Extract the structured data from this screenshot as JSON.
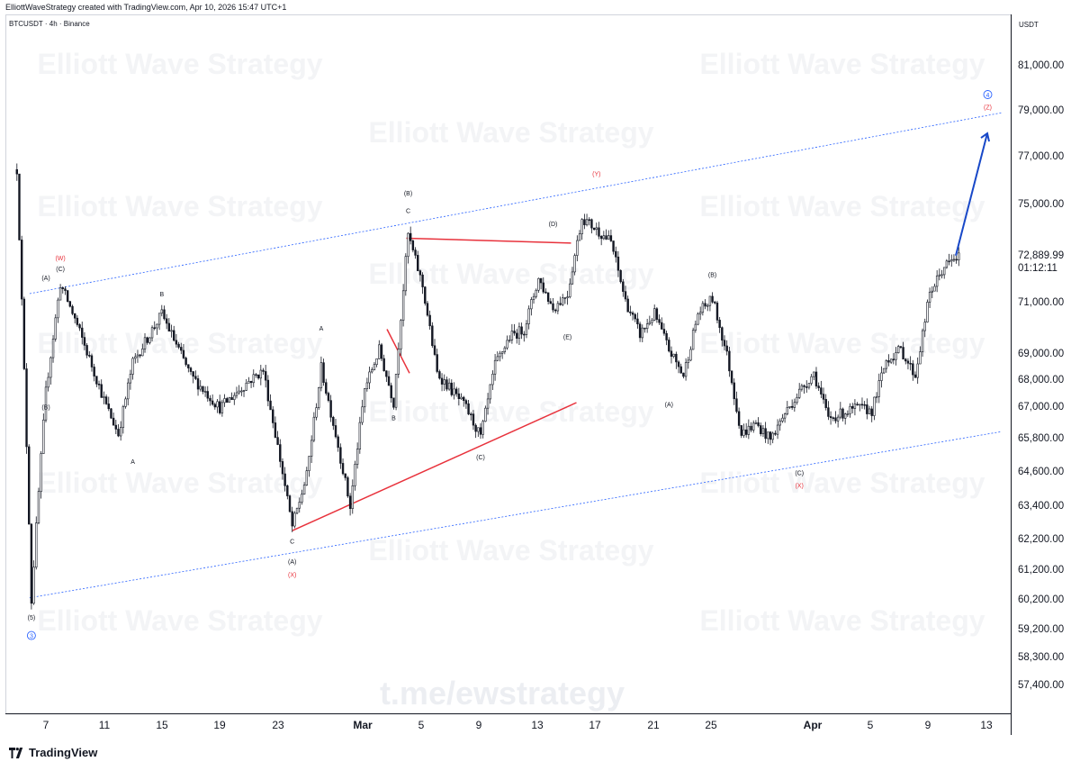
{
  "header": {
    "credit": "ElliottWaveStrategy created with TradingView.com, Apr 10, 2026 15:47 UTC+1",
    "symbol": "BTCUSDT · 4h · Binance"
  },
  "watermarks": {
    "brand": "Elliott Wave Strategy",
    "telegram": "t.me/ewstrategy"
  },
  "footer": {
    "logo_text": "TradingView"
  },
  "colors": {
    "candle": "#131722",
    "channel": "#2962ff",
    "triangle": "#e8323c",
    "arrow": "#1848c8",
    "wave_label_red": "#e8323c",
    "wave_label_blue": "#2962ff"
  },
  "chart_data": {
    "type": "candlestick",
    "symbol": "BTCUSDT",
    "interval": "4h",
    "exchange": "Binance",
    "y_unit": "USDT",
    "y_scale": "log",
    "y_ticks": [
      "81,000.00",
      "79,000.00",
      "77,000.00",
      "75,000.00",
      "72,889.99",
      "71,000.00",
      "69,000.00",
      "68,000.00",
      "67,000.00",
      "65,800.00",
      "64,600.00",
      "63,400.00",
      "62,200.00",
      "61,200.00",
      "60,200.00",
      "59,200.00",
      "58,300.00",
      "57,400.00"
    ],
    "current_price": "72,889.99",
    "countdown": "01:12:11",
    "x_ticks": [
      {
        "label": "7",
        "bold": false
      },
      {
        "label": "11",
        "bold": false
      },
      {
        "label": "15",
        "bold": false
      },
      {
        "label": "19",
        "bold": false
      },
      {
        "label": "23",
        "bold": false
      },
      {
        "label": "Mar",
        "bold": true
      },
      {
        "label": "5",
        "bold": false
      },
      {
        "label": "9",
        "bold": false
      },
      {
        "label": "13",
        "bold": false
      },
      {
        "label": "17",
        "bold": false
      },
      {
        "label": "21",
        "bold": false
      },
      {
        "label": "25",
        "bold": false
      },
      {
        "label": "Apr",
        "bold": true
      },
      {
        "label": "5",
        "bold": false
      },
      {
        "label": "9",
        "bold": false
      },
      {
        "label": "13",
        "bold": false
      }
    ],
    "price_path": [
      {
        "date": "Feb 5",
        "price": 76500
      },
      {
        "date": "Feb 6",
        "price": 60200
      },
      {
        "date": "Feb 7",
        "price": 67600
      },
      {
        "date": "Feb 8",
        "price": 71800
      },
      {
        "date": "Feb 9",
        "price": 70400
      },
      {
        "date": "Feb 11",
        "price": 67300
      },
      {
        "date": "Feb 12",
        "price": 66000
      },
      {
        "date": "Feb 13",
        "price": 68700
      },
      {
        "date": "Feb 15",
        "price": 70600
      },
      {
        "date": "Feb 17",
        "price": 68200
      },
      {
        "date": "Feb 19",
        "price": 67000
      },
      {
        "date": "Feb 21",
        "price": 68000
      },
      {
        "date": "Feb 22",
        "price": 68400
      },
      {
        "date": "Feb 24",
        "price": 62700
      },
      {
        "date": "Feb 25",
        "price": 64500
      },
      {
        "date": "Feb 26",
        "price": 68500
      },
      {
        "date": "Feb 27",
        "price": 66000
      },
      {
        "date": "Feb 28",
        "price": 63400
      },
      {
        "date": "Mar 1",
        "price": 67700
      },
      {
        "date": "Mar 2",
        "price": 69200
      },
      {
        "date": "Mar 3",
        "price": 67200
      },
      {
        "date": "Mar 4",
        "price": 73800
      },
      {
        "date": "Mar 5",
        "price": 71700
      },
      {
        "date": "Mar 6",
        "price": 68300
      },
      {
        "date": "Mar 8",
        "price": 67000
      },
      {
        "date": "Mar 9",
        "price": 65900
      },
      {
        "date": "Mar 10",
        "price": 68600
      },
      {
        "date": "Mar 11",
        "price": 69700
      },
      {
        "date": "Mar 12",
        "price": 70000
      },
      {
        "date": "Mar 13",
        "price": 72000
      },
      {
        "date": "Mar 14",
        "price": 70800
      },
      {
        "date": "Mar 15",
        "price": 71400
      },
      {
        "date": "Mar 16",
        "price": 74500
      },
      {
        "date": "Mar 17",
        "price": 74000
      },
      {
        "date": "Mar 18",
        "price": 73500
      },
      {
        "date": "Mar 19",
        "price": 71100
      },
      {
        "date": "Mar 20",
        "price": 69800
      },
      {
        "date": "Mar 21",
        "price": 70600
      },
      {
        "date": "Mar 22",
        "price": 69200
      },
      {
        "date": "Mar 23",
        "price": 68200
      },
      {
        "date": "Mar 24",
        "price": 70600
      },
      {
        "date": "Mar 25",
        "price": 71200
      },
      {
        "date": "Mar 26",
        "price": 69000
      },
      {
        "date": "Mar 27",
        "price": 66000
      },
      {
        "date": "Mar 28",
        "price": 66400
      },
      {
        "date": "Mar 29",
        "price": 65800
      },
      {
        "date": "Mar 30",
        "price": 66800
      },
      {
        "date": "Mar 31",
        "price": 67600
      },
      {
        "date": "Apr 1",
        "price": 68300
      },
      {
        "date": "Apr 2",
        "price": 66600
      },
      {
        "date": "Apr 3",
        "price": 66800
      },
      {
        "date": "Apr 4",
        "price": 67000
      },
      {
        "date": "Apr 5",
        "price": 66900
      },
      {
        "date": "Apr 6",
        "price": 68800
      },
      {
        "date": "Apr 7",
        "price": 69200
      },
      {
        "date": "Apr 8",
        "price": 68200
      },
      {
        "date": "Apr 9",
        "price": 71400
      },
      {
        "date": "Apr 10",
        "price": 72500
      },
      {
        "date": "Apr 11",
        "price": 72890
      }
    ],
    "wave_labels": [
      {
        "text": "(W)",
        "date": "Feb 8",
        "price": 72750,
        "color": "red"
      },
      {
        "text": "(C)",
        "date": "Feb 8",
        "price": 72300,
        "color": "black"
      },
      {
        "text": "(A)",
        "date": "Feb 7",
        "price": 71950,
        "color": "black"
      },
      {
        "text": "(B)",
        "date": "Feb 7",
        "price": 66950,
        "color": "black"
      },
      {
        "text": "(5)",
        "date": "Feb 6",
        "price": 59570,
        "color": "black"
      },
      {
        "text": "3",
        "date": "Feb 6",
        "price": 58950,
        "color": "blue",
        "circled": true
      },
      {
        "text": "B",
        "date": "Feb 15",
        "price": 71290,
        "color": "black"
      },
      {
        "text": "A",
        "date": "Feb 13",
        "price": 64930,
        "color": "black"
      },
      {
        "text": "C",
        "date": "Feb 24",
        "price": 62100,
        "color": "black"
      },
      {
        "text": "(A)",
        "date": "Feb 24",
        "price": 61430,
        "color": "black"
      },
      {
        "text": "(X)",
        "date": "Feb 24",
        "price": 61010,
        "color": "red"
      },
      {
        "text": "A",
        "date": "Feb 26",
        "price": 69940,
        "color": "black"
      },
      {
        "text": "B",
        "date": "Mar 3",
        "price": 66540,
        "color": "black"
      },
      {
        "text": "(B)",
        "date": "Mar 4",
        "price": 75420,
        "color": "black"
      },
      {
        "text": "C",
        "date": "Mar 4",
        "price": 74680,
        "color": "black"
      },
      {
        "text": "(C)",
        "date": "Mar 9",
        "price": 65080,
        "color": "black"
      },
      {
        "text": "(D)",
        "date": "Mar 14",
        "price": 74150,
        "color": "black"
      },
      {
        "text": "(E)",
        "date": "Mar 15",
        "price": 69620,
        "color": "black"
      },
      {
        "text": "(Y)",
        "date": "Mar 17",
        "price": 76220,
        "color": "red"
      },
      {
        "text": "(A)",
        "date": "Mar 22",
        "price": 67050,
        "color": "black"
      },
      {
        "text": "(B)",
        "date": "Mar 25",
        "price": 72070,
        "color": "black"
      },
      {
        "text": "(C)",
        "date": "Mar 31",
        "price": 64520,
        "color": "black"
      },
      {
        "text": "(X)",
        "date": "Mar 31",
        "price": 64080,
        "color": "red"
      },
      {
        "text": "4",
        "date": "Apr 13",
        "price": 79640,
        "color": "blue",
        "circled": true
      },
      {
        "text": "(Z)",
        "date": "Apr 13",
        "price": 79110,
        "color": "red"
      }
    ],
    "channel_lines": [
      {
        "from": {
          "date": "Feb 6",
          "price": 71400
        },
        "to": {
          "date": "Apr 13",
          "price": 78950
        }
      },
      {
        "from": {
          "date": "Feb 6",
          "price": 60300
        },
        "to": {
          "date": "Apr 13",
          "price": 66100
        }
      }
    ],
    "triangle_lines": [
      {
        "from": {
          "date": "Feb 24",
          "price": 62550
        },
        "to": {
          "date": "Mar 14",
          "price": 67200
        }
      },
      {
        "from": {
          "date": "Mar 4",
          "price": 73650
        },
        "to": {
          "date": "Mar 14",
          "price": 73450
        }
      },
      {
        "from": {
          "date": "Mar 2",
          "price": 70000
        },
        "to": {
          "date": "Mar 2",
          "price": 68300
        }
      }
    ],
    "projection_arrow": {
      "from": {
        "date": "Apr 11",
        "price": 72900
      },
      "to": {
        "date": "Apr 12",
        "price": 77900
      }
    }
  }
}
